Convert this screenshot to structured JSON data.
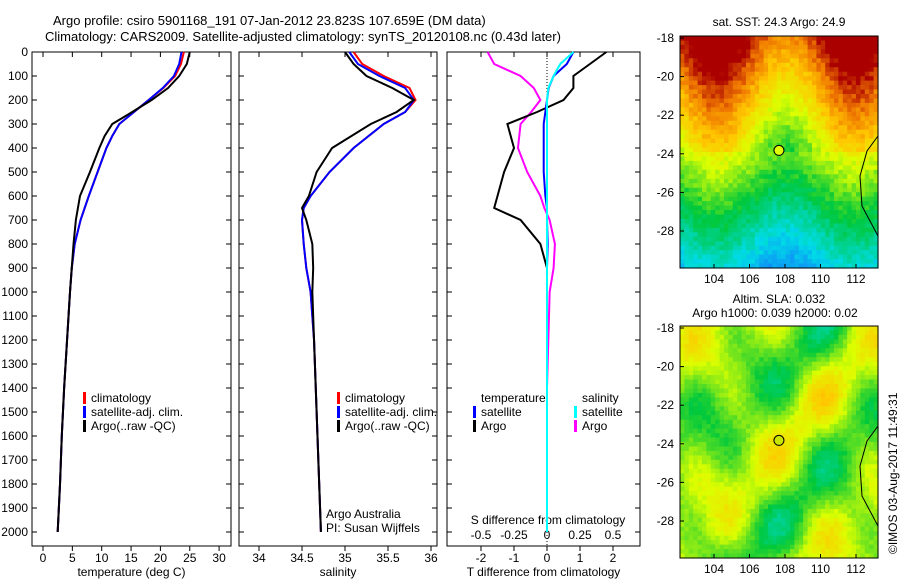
{
  "title": {
    "line1": "Argo profile: csiro 5901168_191 07-Jan-2012 23.823S 107.659E (DM data)",
    "line2": "Climatology: CARS2009. Satellite-adjusted climatology: synTS_20120108.nc (0.43d later)"
  },
  "credit": {
    "institution": "Argo Australia",
    "pi": "PI: Susan Wijffels",
    "stamp": "©IMOS 03-Aug-2017 11:49:31"
  },
  "colors": {
    "climatology": "#ff0000",
    "satellite": "#0000ff",
    "argo": "#000000",
    "sal_sat": "#00ffff",
    "sal_argo": "#ff00ff"
  },
  "chart_data": [
    {
      "type": "line",
      "name": "temperature",
      "xlabel": "temperature (deg C)",
      "ylabel": "",
      "xlim": [
        -2,
        32
      ],
      "ylim": [
        2060,
        0
      ],
      "xticks": [
        "0",
        "5",
        "10",
        "15",
        "20",
        "25",
        "30"
      ],
      "xtick_values": [
        0,
        5,
        10,
        15,
        20,
        25,
        30
      ],
      "yticks": [
        "0",
        "100",
        "200",
        "300",
        "400",
        "500",
        "600",
        "700",
        "800",
        "900",
        "1000",
        "1100",
        "1200",
        "1300",
        "1400",
        "1500",
        "1600",
        "1700",
        "1800",
        "1900",
        "2000"
      ],
      "legend": [
        "climatology",
        "satellite-adj. clim.",
        "Argo(..raw -QC)"
      ],
      "depth": [
        0,
        50,
        100,
        150,
        200,
        250,
        300,
        350,
        400,
        500,
        600,
        700,
        800,
        900,
        1000,
        1200,
        1400,
        1600,
        1800,
        2000
      ],
      "series": [
        {
          "name": "climatology",
          "values": [
            24,
            23.5,
            22.5,
            20.5,
            18,
            15.5,
            13,
            11.8,
            10.8,
            9.3,
            7.8,
            6.4,
            5.4,
            4.9,
            4.6,
            4.1,
            3.6,
            3.2,
            2.9,
            2.5
          ]
        },
        {
          "name": "satellite-adj. clim.",
          "values": [
            23.6,
            23.2,
            22.3,
            20.4,
            18,
            15.5,
            13,
            11.8,
            10.8,
            9.3,
            7.8,
            6.4,
            5.4,
            4.9,
            4.6,
            4.1,
            3.6,
            3.2,
            2.9,
            2.5
          ]
        },
        {
          "name": "Argo(..raw -QC)",
          "values": [
            25,
            24.5,
            23.2,
            21.3,
            18.5,
            15.2,
            11.8,
            10.5,
            9.6,
            8,
            6.3,
            5.6,
            5.2,
            4.9,
            4.6,
            4.1,
            3.6,
            3.2,
            2.9,
            2.5
          ]
        }
      ]
    },
    {
      "type": "line",
      "name": "salinity",
      "xlabel": "salinity",
      "xlim": [
        33.8,
        36.2
      ],
      "ylim": [
        2060,
        0
      ],
      "xticks": [
        "34",
        "34.5",
        "35",
        "35.5",
        "36"
      ],
      "xtick_values": [
        34,
        34.5,
        35,
        35.5,
        36
      ],
      "legend": [
        "climatology",
        "satellite-adj. clim.",
        "Argo(..raw -QC)"
      ],
      "depth": [
        0,
        50,
        100,
        150,
        200,
        250,
        300,
        400,
        500,
        600,
        650,
        700,
        800,
        900,
        1000,
        1200,
        1400,
        1600,
        1800,
        2000
      ],
      "series": [
        {
          "name": "climatology",
          "values": [
            35.1,
            35.2,
            35.45,
            35.75,
            35.82,
            35.7,
            35.45,
            35.1,
            34.82,
            34.6,
            34.52,
            34.5,
            34.52,
            34.55,
            34.6,
            34.64,
            34.66,
            34.68,
            34.7,
            34.72
          ]
        },
        {
          "name": "satellite-adj. clim.",
          "values": [
            35.05,
            35.15,
            35.4,
            35.7,
            35.8,
            35.7,
            35.45,
            35.1,
            34.82,
            34.6,
            34.52,
            34.5,
            34.52,
            34.55,
            34.6,
            34.64,
            34.66,
            34.68,
            34.7,
            34.72
          ]
        },
        {
          "name": "Argo(..raw -QC)",
          "values": [
            35.0,
            35.1,
            35.25,
            35.55,
            35.8,
            35.6,
            35.3,
            34.85,
            34.67,
            34.58,
            34.5,
            34.55,
            34.62,
            34.63,
            34.62,
            34.64,
            34.66,
            34.68,
            34.7,
            34.72
          ]
        }
      ]
    },
    {
      "type": "line",
      "name": "differences",
      "xlabel": "T difference from climatology",
      "x2label": "S difference from climatology",
      "xlim": [
        -3,
        3
      ],
      "ylim": [
        2060,
        0
      ],
      "xticks": [
        "-2",
        "-1",
        "0",
        "1",
        "2"
      ],
      "xtick_values": [
        -2,
        -1,
        0,
        1,
        2
      ],
      "x2ticks": [
        "-0.5",
        "-0.25",
        "0",
        "0.25",
        "0.5"
      ],
      "x2tick_values": [
        -0.5,
        -0.25,
        0,
        0.25,
        0.5
      ],
      "legend": {
        "temperature_title": "temperature",
        "salinity_title": "salinity",
        "t_sat": "satellite",
        "t_argo": "Argo",
        "s_sat": "satellite",
        "s_argo": "Argo"
      },
      "depth": [
        0,
        50,
        100,
        150,
        200,
        250,
        300,
        400,
        500,
        600,
        650,
        700,
        800,
        900,
        1000,
        1200,
        1400,
        1600,
        1800,
        2000
      ],
      "series": [
        {
          "name": "T satellite",
          "values": [
            0.8,
            0.6,
            0.2,
            0.05,
            0,
            -0.05,
            -0.1,
            -0.1,
            -0.1,
            -0.05,
            0,
            0,
            0.02,
            0,
            0,
            0,
            0,
            0,
            0,
            0
          ]
        },
        {
          "name": "T Argo",
          "values": [
            1.8,
            1.3,
            0.8,
            0.8,
            0.5,
            -0.3,
            -1.2,
            -1.0,
            -1.3,
            -1.5,
            -1.6,
            -0.8,
            -0.2,
            0,
            0,
            0,
            0,
            0,
            0,
            0
          ]
        },
        {
          "name": "S satellite",
          "values": [
            0.2,
            0.1,
            0.05,
            0.01,
            0,
            0,
            0,
            0,
            0,
            0,
            0,
            0,
            0,
            0,
            0,
            0,
            0,
            0,
            0,
            0
          ]
        },
        {
          "name": "S Argo",
          "values": [
            -0.45,
            -0.4,
            -0.2,
            -0.1,
            -0.05,
            -0.12,
            -0.2,
            -0.22,
            -0.15,
            -0.05,
            -0.02,
            0.02,
            0.06,
            0.05,
            0.02,
            0.01,
            0,
            0,
            0,
            0
          ]
        }
      ]
    },
    {
      "type": "heatmap",
      "name": "sst-map",
      "title": "sat. SST: 24.3 Argo: 24.9",
      "xticks": [
        "104",
        "106",
        "108",
        "110",
        "112"
      ],
      "yticks": [
        "-18",
        "-20",
        "-22",
        "-24",
        "-26",
        "-28"
      ],
      "marker": [
        107.659,
        -23.823
      ]
    },
    {
      "type": "heatmap",
      "name": "sla-map",
      "title1": "Altim. SLA: 0.032",
      "title2": "Argo h1000: 0.039 h2000: 0.02",
      "xticks": [
        "104",
        "106",
        "108",
        "110",
        "112"
      ],
      "yticks": [
        "-18",
        "-20",
        "-22",
        "-24",
        "-26",
        "-28"
      ],
      "marker": [
        107.659,
        -23.823
      ]
    }
  ]
}
